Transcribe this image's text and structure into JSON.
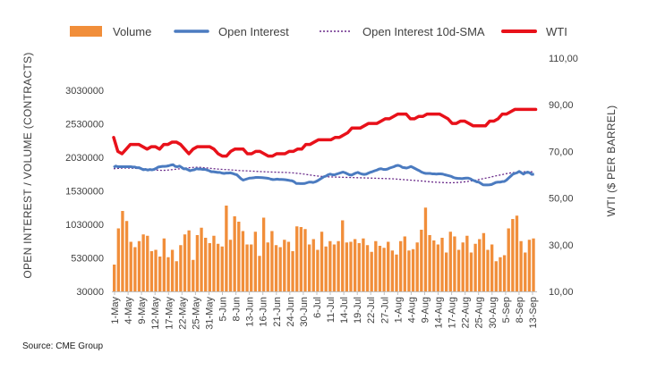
{
  "chart_data": {
    "type": "bar+line",
    "legend": {
      "placement": "top",
      "entries": [
        {
          "name": "Volume",
          "marker": "bar",
          "color": "#F18E3A"
        },
        {
          "name": "Open Interest",
          "marker": "line",
          "color": "#4B7BC0"
        },
        {
          "name": "Open Interest 10d-SMA",
          "marker": "dotted-line",
          "color": "#6A2B8A"
        },
        {
          "name": "WTI",
          "marker": "line",
          "color": "#E8111A"
        }
      ]
    },
    "y_left": {
      "label": "OPEN INTEREST / VOLUME (CONTRACTS)",
      "min": 30000,
      "max": 3030000,
      "ticks": [
        "3030000",
        "2530000",
        "2030000",
        "1530000",
        "1030000",
        "530000",
        "30000"
      ]
    },
    "y_right": {
      "label": "WTI ($ PER BARREL)",
      "min": 10,
      "max": 110,
      "ticks": [
        "110,00",
        "90,00",
        "70,00",
        "50,00",
        "30,00",
        "10,00"
      ]
    },
    "x_tick_labels": [
      "1-May",
      "4-May",
      "9-May",
      "12-May",
      "17-May",
      "22-May",
      "25-May",
      "31-May",
      "5-Jun",
      "8-Jun",
      "13-Jun",
      "16-Jun",
      "21-Jun",
      "24-Jun",
      "30-Jun",
      "6-Jul",
      "11-Jul",
      "14-Jul",
      "19-Jul",
      "22-Jul",
      "27-Jul",
      "1-Aug",
      "4-Aug",
      "9-Aug",
      "14-Aug",
      "17-Aug",
      "22-Aug",
      "25-Aug",
      "30-Aug",
      "5-Sep",
      "8-Sep",
      "13-Sep"
    ],
    "grid": false,
    "series": {
      "volume": [
        430000,
        970000,
        1230000,
        1080000,
        770000,
        690000,
        780000,
        880000,
        860000,
        630000,
        650000,
        550000,
        820000,
        540000,
        650000,
        480000,
        720000,
        880000,
        940000,
        500000,
        870000,
        980000,
        830000,
        750000,
        860000,
        740000,
        700000,
        1310000,
        800000,
        1150000,
        1070000,
        930000,
        730000,
        730000,
        920000,
        560000,
        1130000,
        760000,
        930000,
        720000,
        690000,
        800000,
        770000,
        630000,
        1000000,
        990000,
        960000,
        730000,
        810000,
        650000,
        920000,
        700000,
        780000,
        730000,
        780000,
        1090000,
        760000,
        770000,
        810000,
        750000,
        820000,
        720000,
        620000,
        780000,
        710000,
        680000,
        770000,
        640000,
        580000,
        780000,
        850000,
        640000,
        660000,
        760000,
        950000,
        1280000,
        870000,
        790000,
        730000,
        830000,
        610000,
        920000,
        850000,
        650000,
        760000,
        860000,
        610000,
        740000,
        810000,
        900000,
        650000,
        730000,
        480000,
        540000,
        570000,
        970000,
        1110000,
        1160000,
        780000,
        610000,
        800000,
        820000
      ],
      "open_interest": [
        1880000,
        1900000,
        1890000,
        1890000,
        1890000,
        1890000,
        1890000,
        1890000,
        1890000,
        1885000,
        1885000,
        1875000,
        1875000,
        1860000,
        1845000,
        1850000,
        1840000,
        1848000,
        1843000,
        1850000,
        1865000,
        1885000,
        1890000,
        1895000,
        1895000,
        1898000,
        1905000,
        1915000,
        1920000,
        1895000,
        1890000,
        1900000,
        1880000,
        1858000,
        1860000,
        1845000,
        1830000,
        1840000,
        1845000,
        1860000,
        1855000,
        1855000,
        1850000,
        1850000,
        1840000,
        1830000,
        1815000,
        1815000,
        1810000,
        1805000,
        1805000,
        1795000,
        1790000,
        1795000,
        1795000,
        1798000,
        1790000,
        1778000,
        1770000,
        1740000,
        1710000,
        1690000,
        1700000,
        1710000,
        1720000,
        1722000,
        1725000,
        1730000,
        1730000,
        1728000,
        1726000,
        1723000,
        1720000,
        1715000,
        1705000,
        1698000,
        1700000,
        1705000,
        1700000,
        1700000,
        1698000,
        1695000,
        1690000,
        1684000,
        1680000,
        1665000,
        1640000,
        1640000,
        1638000,
        1638000,
        1640000,
        1650000,
        1660000,
        1660000,
        1655000,
        1665000,
        1680000,
        1700000,
        1720000,
        1740000,
        1750000,
        1770000,
        1780000,
        1770000,
        1768000,
        1780000,
        1790000,
        1800000,
        1810000,
        1800000,
        1785000,
        1770000,
        1765000,
        1780000,
        1795000,
        1805000,
        1790000,
        1780000,
        1775000,
        1780000,
        1795000,
        1808000,
        1818000,
        1830000,
        1840000,
        1855000,
        1860000,
        1850000,
        1848000,
        1855000,
        1870000,
        1880000,
        1890000,
        1905000,
        1910000,
        1900000,
        1880000,
        1875000,
        1870000,
        1880000,
        1893000,
        1878000,
        1862000,
        1845000,
        1830000,
        1810000,
        1798000,
        1790000,
        1790000,
        1790000,
        1784000,
        1784000,
        1780000,
        1784000,
        1784000,
        1780000,
        1770000,
        1762000,
        1754000,
        1746000,
        1730000,
        1720000,
        1716000,
        1715000,
        1712000,
        1716000,
        1720000,
        1720000,
        1710000,
        1690000,
        1680000,
        1665000,
        1660000,
        1640000,
        1620000,
        1618000,
        1618000,
        1620000,
        1625000,
        1640000,
        1655000,
        1660000,
        1660000,
        1668000,
        1670000,
        1690000,
        1720000,
        1748000,
        1778000,
        1790000,
        1800000,
        1820000,
        1800000,
        1780000,
        1800000,
        1810000,
        1798000,
        1775000,
        1780000
      ],
      "open_interest_sma10": [
        1860000,
        1865000,
        1870000,
        1870000,
        1868000,
        1865000,
        1862000,
        1858000,
        1850000,
        1842000,
        1838000,
        1835000,
        1838000,
        1845000,
        1852000,
        1860000,
        1868000,
        1875000,
        1880000,
        1882000,
        1878000,
        1872000,
        1865000,
        1858000,
        1852000,
        1848000,
        1845000,
        1840000,
        1835000,
        1830000,
        1828000,
        1825000,
        1822000,
        1818000,
        1815000,
        1812000,
        1810000,
        1808000,
        1806000,
        1804000,
        1800000,
        1795000,
        1788000,
        1780000,
        1770000,
        1760000,
        1752000,
        1745000,
        1740000,
        1738000,
        1736000,
        1734000,
        1732000,
        1730000,
        1728000,
        1726000,
        1724000,
        1722000,
        1720000,
        1718000,
        1716000,
        1714000,
        1712000,
        1710000,
        1705000,
        1700000,
        1695000,
        1690000,
        1685000,
        1680000,
        1675000,
        1668000,
        1662000,
        1658000,
        1655000,
        1652000,
        1650000,
        1652000,
        1656000,
        1662000,
        1670000,
        1680000,
        1692000,
        1705000,
        1718000,
        1732000,
        1748000,
        1762000,
        1775000,
        1790000,
        1800000,
        1805000,
        1810000,
        1815000,
        1815000,
        1812000
      ],
      "wti": [
        76,
        70,
        69,
        71,
        73,
        73,
        73,
        72,
        71,
        72,
        72,
        71,
        73,
        73,
        74,
        74,
        73,
        71,
        69,
        71,
        72,
        72,
        72,
        72,
        71,
        69,
        68,
        68,
        70,
        71,
        71,
        71,
        69,
        69,
        70,
        70,
        69,
        68,
        68,
        69,
        69,
        69,
        70,
        70,
        71,
        71,
        73,
        73,
        74,
        75,
        75,
        75,
        75,
        76,
        76,
        77,
        78,
        80,
        80,
        80,
        81,
        82,
        82,
        82,
        83,
        84,
        84,
        85,
        86,
        86,
        86,
        84,
        84,
        85,
        85,
        86,
        86,
        86,
        86,
        85,
        84,
        82,
        82,
        83,
        83,
        82,
        81,
        81,
        81,
        81,
        83,
        83,
        84,
        86,
        86,
        87,
        88,
        88,
        88,
        88,
        88,
        88
      ]
    }
  },
  "source": "Source: CME Group"
}
